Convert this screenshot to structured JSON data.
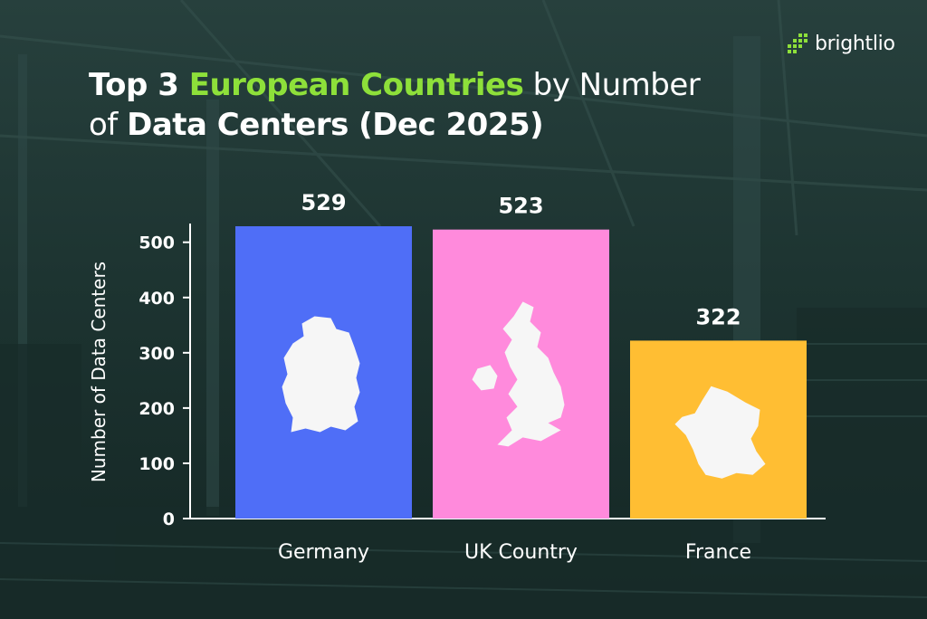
{
  "brand": {
    "name": "brightlio",
    "icon": "brightlio-dots-logo-icon"
  },
  "title": {
    "part1": "Top 3 ",
    "highlight": "European Countries",
    "part2": " by Number",
    "part3": "of ",
    "part4": "Data Centers (Dec 2025)"
  },
  "chart_data": {
    "type": "bar",
    "categories": [
      "Germany",
      "UK Country",
      "France"
    ],
    "values": [
      529,
      523,
      322
    ],
    "data_labels": [
      "529",
      "523",
      "322"
    ],
    "ylabel": "Number of Data Centers",
    "xlabel": "",
    "ylim": [
      0,
      529
    ],
    "yticks": [
      0,
      100,
      200,
      300,
      400,
      500
    ],
    "grid": false,
    "legend": "none",
    "colors": [
      "#4f6ef7",
      "#ff8adc",
      "#ffbe33"
    ],
    "bar_icons": [
      "germany-map-icon",
      "uk-map-icon",
      "france-map-icon"
    ]
  },
  "colors": {
    "background": "#1d3431",
    "text": "#ffffff",
    "accent": "#8ee03a"
  }
}
